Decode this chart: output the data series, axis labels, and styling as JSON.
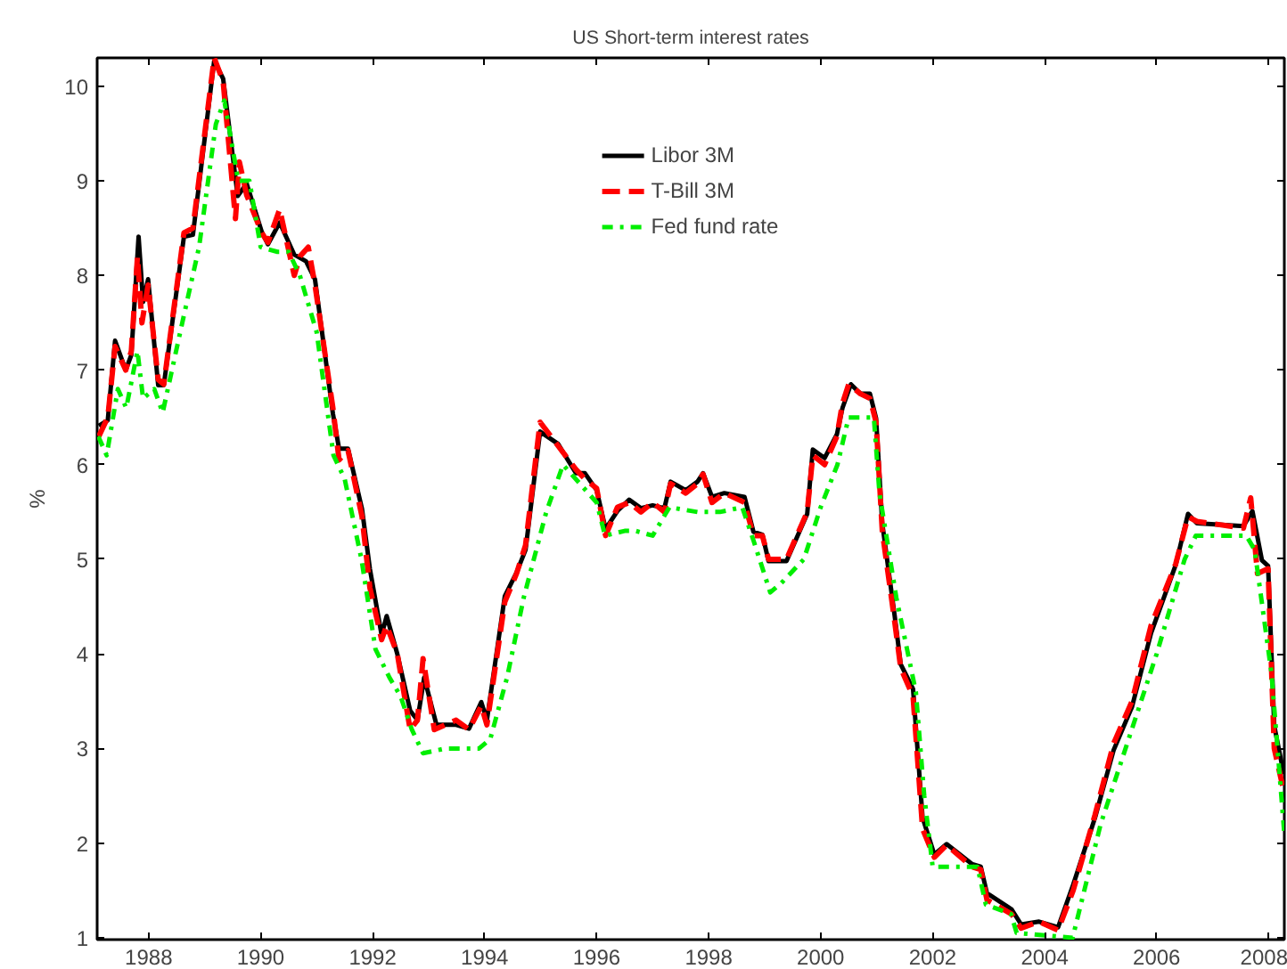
{
  "chart_data": {
    "type": "line",
    "title": "US Short-term interest rates",
    "ylabel": "%",
    "xlim": [
      1987.08,
      2008.28
    ],
    "ylim": [
      0.98,
      10.3
    ],
    "xticks": [
      1988,
      1990,
      1992,
      1994,
      1996,
      1998,
      2000,
      2002,
      2004,
      2006,
      2008
    ],
    "yticks": [
      1,
      2,
      3,
      4,
      5,
      6,
      7,
      8,
      9,
      10
    ],
    "grid": false,
    "legend": "top",
    "series": [
      {
        "name": "Libor 3M",
        "color": "#000000",
        "line_style": "solid",
        "x": [
          1987.11,
          1987.27,
          1987.4,
          1987.59,
          1987.69,
          1987.82,
          1987.9,
          1987.99,
          1988.17,
          1988.27,
          1988.63,
          1988.79,
          1989.17,
          1989.33,
          1989.59,
          1989.75,
          1990.02,
          1990.13,
          1990.34,
          1990.6,
          1990.81,
          1990.97,
          1991.29,
          1991.4,
          1991.56,
          1991.81,
          1991.95,
          1992.16,
          1992.25,
          1992.44,
          1992.67,
          1992.8,
          1992.92,
          1993.14,
          1993.49,
          1993.72,
          1993.94,
          1994.04,
          1994.36,
          1994.57,
          1994.73,
          1994.99,
          1995.31,
          1995.63,
          1995.79,
          1996.0,
          1996.16,
          1996.37,
          1996.58,
          1996.79,
          1997.0,
          1997.21,
          1997.32,
          1997.59,
          1997.8,
          1997.9,
          1998.06,
          1998.28,
          1998.64,
          1998.8,
          1998.96,
          1999.07,
          1999.39,
          1999.76,
          1999.86,
          2000.07,
          2000.29,
          2000.39,
          2000.54,
          2000.71,
          2000.88,
          2000.99,
          2001.1,
          2001.32,
          2001.43,
          2001.65,
          2001.82,
          2002.03,
          2002.25,
          2002.7,
          2002.86,
          2002.97,
          2003.41,
          2003.58,
          2003.9,
          2004.24,
          2004.51,
          2004.9,
          2005.23,
          2005.56,
          2005.9,
          2006.34,
          2006.56,
          2006.72,
          2007.55,
          2007.71,
          2007.88,
          2007.99,
          2008.1,
          2008.27
        ],
        "values": [
          6.41,
          6.47,
          7.31,
          7.0,
          7.16,
          8.41,
          7.72,
          7.96,
          6.84,
          6.84,
          8.41,
          8.43,
          10.27,
          10.08,
          8.84,
          8.97,
          8.46,
          8.33,
          8.56,
          8.22,
          8.15,
          7.96,
          6.54,
          6.17,
          6.17,
          5.53,
          4.9,
          4.2,
          4.4,
          4.0,
          3.4,
          3.3,
          3.75,
          3.25,
          3.25,
          3.21,
          3.49,
          3.3,
          4.61,
          4.86,
          5.1,
          6.35,
          6.22,
          5.91,
          5.91,
          5.73,
          5.32,
          5.51,
          5.63,
          5.54,
          5.57,
          5.54,
          5.82,
          5.73,
          5.82,
          5.91,
          5.66,
          5.7,
          5.66,
          5.29,
          5.26,
          4.98,
          4.98,
          5.48,
          6.16,
          6.07,
          6.32,
          6.6,
          6.85,
          6.75,
          6.75,
          6.49,
          5.38,
          4.41,
          3.89,
          3.63,
          2.27,
          1.88,
          1.99,
          1.78,
          1.75,
          1.47,
          1.3,
          1.14,
          1.17,
          1.11,
          1.56,
          2.27,
          2.98,
          3.44,
          4.22,
          4.94,
          5.48,
          5.38,
          5.35,
          5.51,
          4.99,
          4.93,
          3.24,
          2.73
        ]
      },
      {
        "name": "T-Bill 3M",
        "color": "#ff0000",
        "line_style": "dashed",
        "x": [
          1987.11,
          1987.27,
          1987.4,
          1987.59,
          1987.69,
          1987.8,
          1987.88,
          1987.99,
          1988.17,
          1988.27,
          1988.63,
          1988.79,
          1989.17,
          1989.33,
          1989.55,
          1989.62,
          1989.75,
          1990.02,
          1990.13,
          1990.34,
          1990.6,
          1990.7,
          1990.85,
          1990.97,
          1991.29,
          1991.4,
          1991.56,
          1991.81,
          1991.95,
          1992.16,
          1992.25,
          1992.44,
          1992.67,
          1992.8,
          1992.9,
          1993.1,
          1993.49,
          1993.72,
          1993.94,
          1994.04,
          1994.36,
          1994.57,
          1994.73,
          1994.99,
          1995.31,
          1995.63,
          1995.79,
          1996.0,
          1996.16,
          1996.37,
          1996.58,
          1996.79,
          1997.0,
          1997.21,
          1997.32,
          1997.59,
          1997.8,
          1997.9,
          1998.06,
          1998.28,
          1998.64,
          1998.8,
          1998.96,
          1999.07,
          1999.39,
          1999.76,
          1999.86,
          2000.07,
          2000.29,
          2000.39,
          2000.5,
          2000.71,
          2000.88,
          2000.99,
          2001.1,
          2001.32,
          2001.43,
          2001.65,
          2001.82,
          2002.03,
          2002.25,
          2002.7,
          2002.86,
          2002.97,
          2003.41,
          2003.58,
          2003.9,
          2004.24,
          2004.51,
          2004.9,
          2005.23,
          2005.56,
          2005.9,
          2006.34,
          2006.56,
          2006.72,
          2007.55,
          2007.68,
          2007.8,
          2007.99,
          2008.1,
          2008.27
        ],
        "values": [
          6.3,
          6.5,
          7.25,
          7.0,
          7.2,
          8.2,
          7.5,
          7.9,
          6.9,
          6.85,
          8.45,
          8.5,
          10.3,
          10.05,
          8.6,
          9.2,
          8.85,
          8.45,
          8.35,
          8.7,
          8.0,
          8.2,
          8.3,
          7.9,
          6.6,
          6.05,
          6.15,
          5.45,
          4.7,
          4.15,
          4.3,
          4.0,
          3.2,
          3.3,
          3.95,
          3.2,
          3.3,
          3.2,
          3.45,
          3.25,
          4.55,
          4.85,
          5.15,
          6.45,
          6.2,
          5.95,
          5.85,
          5.75,
          5.25,
          5.55,
          5.6,
          5.5,
          5.6,
          5.5,
          5.8,
          5.7,
          5.8,
          5.9,
          5.6,
          5.7,
          5.6,
          5.25,
          5.25,
          5.0,
          5.0,
          5.5,
          6.1,
          6.0,
          6.3,
          6.65,
          6.85,
          6.75,
          6.7,
          6.45,
          5.3,
          4.35,
          3.85,
          3.55,
          2.15,
          1.85,
          1.98,
          1.75,
          1.72,
          1.4,
          1.25,
          1.1,
          1.17,
          1.08,
          1.5,
          2.3,
          3.05,
          3.5,
          4.3,
          4.95,
          5.45,
          5.4,
          5.33,
          5.65,
          4.85,
          4.9,
          3.0,
          2.55
        ]
      },
      {
        "name": "Fed fund rate",
        "color": "#00ee00",
        "line_style": "dashdot",
        "x": [
          1987.1,
          1987.25,
          1987.45,
          1987.6,
          1987.8,
          1987.9,
          1988.1,
          1988.25,
          1988.6,
          1988.9,
          1989.2,
          1989.35,
          1989.6,
          1989.8,
          1990.0,
          1990.3,
          1990.5,
          1990.7,
          1991.0,
          1991.3,
          1991.5,
          1991.8,
          1992.05,
          1992.3,
          1992.5,
          1992.7,
          1992.9,
          1993.3,
          1993.9,
          1994.1,
          1994.4,
          1994.7,
          1995.1,
          1995.4,
          1995.7,
          1996.0,
          1996.15,
          1996.5,
          1996.7,
          1997.0,
          1997.3,
          1997.8,
          1998.2,
          1998.6,
          1998.8,
          1999.1,
          1999.3,
          1999.7,
          2000.0,
          2000.3,
          2000.5,
          2000.8,
          2000.95,
          2001.05,
          2001.35,
          2001.7,
          2001.85,
          2002.0,
          2002.8,
          2002.95,
          2003.4,
          2003.5,
          2004.5,
          2005.0,
          2005.5,
          2006.0,
          2006.5,
          2006.7,
          2007.6,
          2007.75,
          2008.05,
          2008.28
        ],
        "values": [
          6.3,
          6.1,
          6.8,
          6.6,
          7.2,
          6.7,
          6.8,
          6.55,
          7.5,
          8.3,
          9.6,
          9.85,
          9.0,
          9.0,
          8.3,
          8.25,
          8.25,
          8.0,
          7.4,
          6.1,
          5.85,
          5.0,
          4.05,
          3.75,
          3.55,
          3.2,
          2.95,
          3.0,
          3.0,
          3.1,
          3.75,
          4.6,
          5.5,
          6.0,
          5.8,
          5.6,
          5.25,
          5.3,
          5.3,
          5.25,
          5.55,
          5.5,
          5.5,
          5.55,
          5.2,
          4.65,
          4.75,
          5.0,
          5.55,
          6.0,
          6.5,
          6.5,
          6.5,
          5.7,
          4.6,
          3.6,
          2.5,
          1.75,
          1.75,
          1.35,
          1.25,
          1.05,
          1.0,
          2.2,
          3.1,
          4.0,
          5.0,
          5.25,
          5.25,
          5.1,
          3.8,
          2.1
        ]
      }
    ]
  }
}
